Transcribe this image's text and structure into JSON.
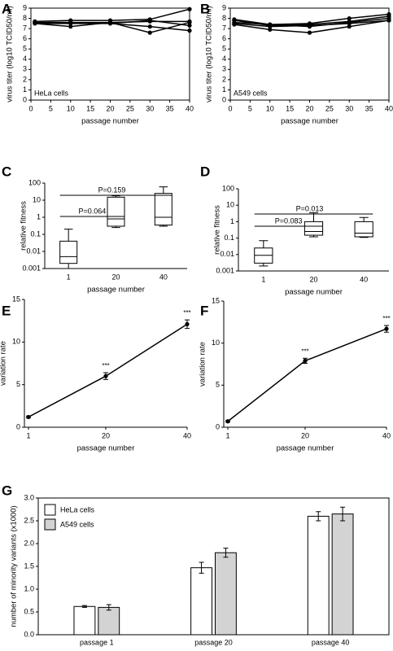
{
  "chart_data": [
    {
      "type": "line",
      "panel": "A",
      "annotation": "HeLa cells",
      "x_label": "passage number",
      "y_label": "virus titer (log10 TCID50/ml)",
      "x": [
        1,
        10,
        20,
        30,
        40
      ],
      "xlim": [
        0,
        40
      ],
      "xticks": [
        0,
        5,
        10,
        15,
        20,
        25,
        30,
        35,
        40
      ],
      "ylim": [
        0,
        9
      ],
      "yticks": [
        0,
        1,
        2,
        3,
        4,
        5,
        6,
        7,
        8,
        9
      ],
      "series": [
        {
          "color": "#000000",
          "values": [
            7.7,
            7.8,
            7.8,
            7.9,
            8.9
          ]
        },
        {
          "color": "#000000",
          "values": [
            7.6,
            7.6,
            7.6,
            7.7,
            7.7
          ]
        },
        {
          "color": "#000000",
          "values": [
            7.5,
            7.2,
            7.6,
            6.6,
            7.6
          ]
        },
        {
          "color": "#000000",
          "values": [
            7.5,
            7.5,
            7.5,
            7.2,
            6.8
          ]
        },
        {
          "color": "#000000",
          "values": [
            7.6,
            7.6,
            7.5,
            7.8,
            7.3
          ]
        }
      ]
    },
    {
      "type": "line",
      "panel": "B",
      "annotation": "A549 cells",
      "x_label": "passage number",
      "y_label": "virus titer (log10 TCID50/ml)",
      "x": [
        1,
        10,
        20,
        30,
        40
      ],
      "xlim": [
        0,
        40
      ],
      "xticks": [
        0,
        5,
        10,
        15,
        20,
        25,
        30,
        35,
        40
      ],
      "ylim": [
        0,
        9
      ],
      "yticks": [
        0,
        1,
        2,
        3,
        4,
        5,
        6,
        7,
        8,
        9
      ],
      "series": [
        {
          "color": "#000000",
          "values": [
            7.9,
            7.4,
            7.5,
            8.0,
            8.4
          ]
        },
        {
          "color": "#000000",
          "values": [
            7.8,
            7.3,
            7.4,
            7.7,
            8.2
          ]
        },
        {
          "color": "#000000",
          "values": [
            7.6,
            7.4,
            7.2,
            7.6,
            8.0
          ]
        },
        {
          "color": "#000000",
          "values": [
            7.5,
            7.2,
            7.3,
            7.5,
            7.8
          ]
        },
        {
          "color": "#000000",
          "values": [
            7.4,
            6.9,
            6.6,
            7.2,
            7.8
          ]
        }
      ]
    },
    {
      "type": "box",
      "panel": "C",
      "x_label": "passage number",
      "y_label": "relative fitness",
      "log_y": true,
      "categories": [
        "1",
        "20",
        "40"
      ],
      "ylim": [
        0.001,
        100
      ],
      "yticks": [
        0.001,
        0.01,
        0.1,
        1,
        10,
        100
      ],
      "boxes": [
        {
          "min": 0.001,
          "q1": 0.002,
          "median": 0.005,
          "q3": 0.04,
          "max": 0.2
        },
        {
          "min": 0.25,
          "q1": 0.3,
          "median": 0.8,
          "q3": 15,
          "max": 18
        },
        {
          "min": 0.3,
          "q1": 0.35,
          "median": 1,
          "q3": 25,
          "max": 60
        }
      ],
      "annotations": [
        "P=0.064",
        "P=0.159"
      ]
    },
    {
      "type": "box",
      "panel": "D",
      "x_label": "passage number",
      "y_label": "relative fitness",
      "log_y": true,
      "categories": [
        "1",
        "20",
        "40"
      ],
      "ylim": [
        0.001,
        100
      ],
      "yticks": [
        0.001,
        0.01,
        0.1,
        1,
        10,
        100
      ],
      "boxes": [
        {
          "min": 0.002,
          "q1": 0.003,
          "median": 0.009,
          "q3": 0.025,
          "max": 0.07
        },
        {
          "min": 0.12,
          "q1": 0.15,
          "median": 0.25,
          "q3": 1,
          "max": 3.5
        },
        {
          "min": 0.11,
          "q1": 0.12,
          "median": 0.2,
          "q3": 1,
          "max": 1.8
        }
      ],
      "annotations": [
        "P=0.083",
        "P=0.013"
      ]
    },
    {
      "type": "line",
      "panel": "E",
      "x_label": "passage number",
      "y_label": "variation rate",
      "x": [
        1,
        20,
        40
      ],
      "xlim": [
        0,
        40
      ],
      "xticks": [
        1,
        20,
        40
      ],
      "ylim": [
        0,
        15
      ],
      "yticks": [
        0,
        5,
        10,
        15
      ],
      "series": [
        {
          "color": "#000000",
          "values": [
            1.2,
            6.0,
            12.1
          ],
          "errors": [
            0.1,
            0.4,
            0.5
          ],
          "point_labels": [
            null,
            "***",
            "***"
          ]
        }
      ]
    },
    {
      "type": "line",
      "panel": "F",
      "x_label": "passage number",
      "y_label": "variation rate",
      "x": [
        1,
        20,
        40
      ],
      "xlim": [
        0,
        40
      ],
      "xticks": [
        1,
        20,
        40
      ],
      "ylim": [
        0,
        15
      ],
      "yticks": [
        0,
        5,
        10,
        15
      ],
      "series": [
        {
          "color": "#000000",
          "values": [
            0.7,
            7.9,
            11.7
          ],
          "errors": [
            0.1,
            0.3,
            0.4
          ],
          "point_labels": [
            null,
            "***",
            "***"
          ]
        }
      ]
    },
    {
      "type": "bar",
      "panel": "G",
      "y_label": "number of minority variants (x1000)",
      "legend": "upper left",
      "categories": [
        "passage 1",
        "passage 20",
        "passage 40"
      ],
      "ylim": [
        0,
        3
      ],
      "yticks": [
        {
          "value": 0,
          "label": "0.0"
        },
        0.5,
        {
          "value": 1,
          "label": "1.0"
        },
        1.5,
        {
          "value": 2,
          "label": "2.0"
        },
        2.5,
        {
          "value": 3,
          "label": "3.0"
        }
      ],
      "series": [
        {
          "name": "HeLa cells",
          "color": "#ffffff",
          "values": [
            0.62,
            1.47,
            2.6
          ],
          "errors": [
            0.02,
            0.12,
            0.1
          ]
        },
        {
          "name": "A549 cells",
          "color": "#d3d3d3",
          "values": [
            0.6,
            1.8,
            2.65
          ],
          "errors": [
            0.06,
            0.1,
            0.15
          ]
        }
      ]
    }
  ]
}
